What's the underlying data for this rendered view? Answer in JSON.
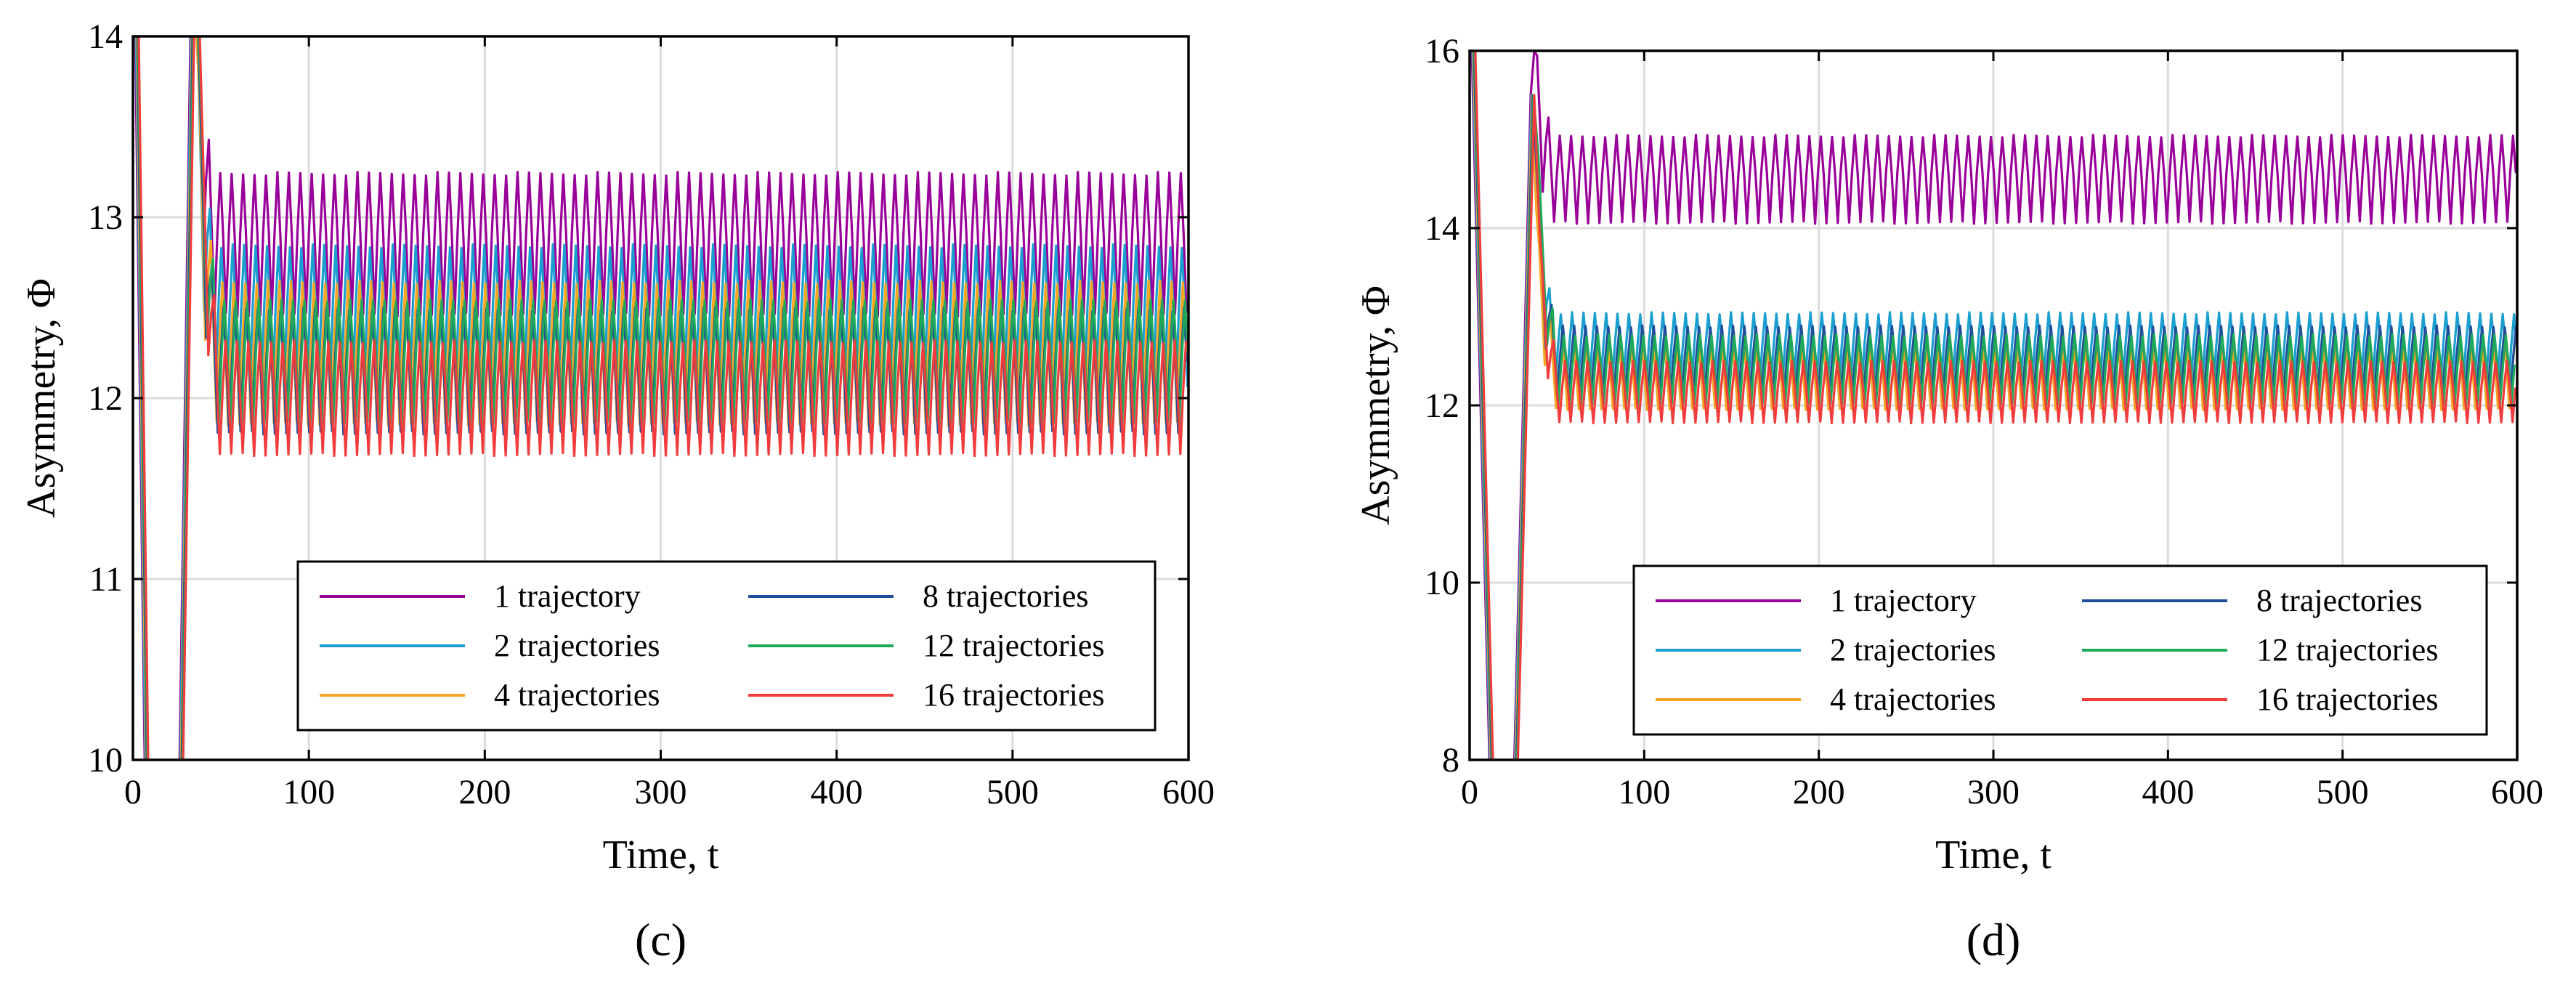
{
  "chart_data": [
    {
      "type": "line",
      "panel_label": "(c)",
      "xlabel": "Time, t",
      "ylabel": "Asymmetry, Φ",
      "xlim": [
        0,
        600
      ],
      "ylim": [
        10,
        14
      ],
      "xticks": [
        0,
        100,
        200,
        300,
        400,
        500,
        600
      ],
      "yticks": [
        10,
        11,
        12,
        13,
        14
      ],
      "grid": true,
      "legend_position": "bottom-right",
      "legend_columns": 2,
      "oscillation_period": 6.5,
      "initial_transient": [
        [
          0,
          15
        ],
        [
          8,
          9
        ],
        [
          25,
          9
        ],
        [
          33,
          14.2
        ],
        [
          40,
          13.5
        ]
      ],
      "series": [
        {
          "name": "1 trajectory",
          "color": "#990099",
          "steady_center": 12.85,
          "amplitude": 0.4,
          "first_peak": 14.2
        },
        {
          "name": "2 trajectories",
          "color": "#1b9fd0",
          "steady_center": 12.45,
          "amplitude": 0.4,
          "first_peak": 14.1
        },
        {
          "name": "4 trajectories",
          "color": "#f5a623",
          "steady_center": 12.25,
          "amplitude": 0.4,
          "first_peak": 14.0
        },
        {
          "name": "8 trajectories",
          "color": "#1f4e9c",
          "steady_center": 12.15,
          "amplitude": 0.35,
          "first_peak": 14.1
        },
        {
          "name": "12 trajectories",
          "color": "#1faa5a",
          "steady_center": 12.2,
          "amplitude": 0.35,
          "first_peak": 14.0
        },
        {
          "name": "16 trajectories",
          "color": "#f03c3c",
          "steady_center": 12.0,
          "amplitude": 0.32,
          "first_peak": 14.0
        }
      ]
    },
    {
      "type": "line",
      "panel_label": "(d)",
      "xlabel": "Time, t",
      "ylabel": "Asymmetry, Φ",
      "xlim": [
        0,
        600
      ],
      "ylim": [
        8,
        16
      ],
      "xticks": [
        0,
        100,
        200,
        300,
        400,
        500,
        600
      ],
      "yticks": [
        8,
        10,
        12,
        14,
        16
      ],
      "grid": true,
      "legend_position": "bottom-right",
      "legend_columns": 2,
      "oscillation_period": 6.5,
      "initial_transient": [
        [
          0,
          17
        ],
        [
          12,
          7.5
        ],
        [
          25,
          7.5
        ],
        [
          35,
          15.5
        ],
        [
          45,
          14.5
        ]
      ],
      "series": [
        {
          "name": "1 trajectory",
          "color": "#990099",
          "steady_center": 14.55,
          "amplitude": 0.5,
          "first_peak": 16.0
        },
        {
          "name": "2 trajectories",
          "color": "#1b9fd0",
          "steady_center": 12.6,
          "amplitude": 0.45,
          "first_peak": 14.9
        },
        {
          "name": "4 trajectories",
          "color": "#f5a623",
          "steady_center": 12.35,
          "amplitude": 0.4,
          "first_peak": 14.2
        },
        {
          "name": "8 trajectories",
          "color": "#1f4e9c",
          "steady_center": 12.5,
          "amplitude": 0.4,
          "first_peak": 14.5
        },
        {
          "name": "12 trajectories",
          "color": "#1faa5a",
          "steady_center": 12.4,
          "amplitude": 0.4,
          "first_peak": 14.8
        },
        {
          "name": "16 trajectories",
          "color": "#f03c3c",
          "steady_center": 12.15,
          "amplitude": 0.35,
          "first_peak": 14.0
        }
      ]
    }
  ]
}
